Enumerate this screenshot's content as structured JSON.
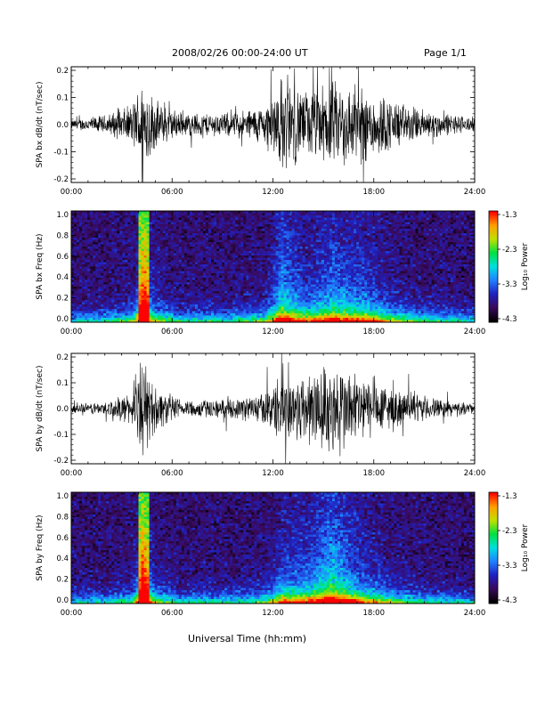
{
  "header": {
    "title": "2008/02/26  00:00-24:00 UT",
    "page": "Page 1/1"
  },
  "footer": {
    "xlabel": "Universal Time (hh:mm)"
  },
  "colorbar": {
    "label": "Log₁₀ Power",
    "ticks": [
      "-1.3",
      "-2.3",
      "-3.3",
      "-4.3"
    ]
  },
  "colors": {
    "background": "#ffffff",
    "waveform": "#000000",
    "spectrogram_scale": [
      "#000000",
      "#3a0a5a",
      "#2020c0",
      "#2080ff",
      "#00e0e0",
      "#00e040",
      "#c0e000",
      "#ffa000",
      "#ff0000"
    ]
  },
  "chart_data": [
    {
      "type": "line",
      "ylabel": "SPA bx dB/dt (nT/sec)",
      "xlim": [
        0,
        24
      ],
      "x_tick_labels": [
        "00:00",
        "06:00",
        "12:00",
        "18:00",
        "24:00"
      ],
      "ylim": [
        -0.2,
        0.2
      ],
      "y_tick_labels": [
        "0.2",
        "0.1",
        "0.0",
        "-0.1",
        "-0.2"
      ],
      "envelope": [
        {
          "x": 0,
          "amp": 0.02
        },
        {
          "x": 2,
          "amp": 0.04
        },
        {
          "x": 3.6,
          "amp": 0.08
        },
        {
          "x": 4.3,
          "amp": 0.21
        },
        {
          "x": 5.0,
          "amp": 0.1
        },
        {
          "x": 6.5,
          "amp": 0.05
        },
        {
          "x": 9.5,
          "amp": 0.05
        },
        {
          "x": 11.5,
          "amp": 0.08
        },
        {
          "x": 12.5,
          "amp": 0.2
        },
        {
          "x": 14,
          "amp": 0.14
        },
        {
          "x": 15.5,
          "amp": 0.18
        },
        {
          "x": 17.5,
          "amp": 0.16
        },
        {
          "x": 20,
          "amp": 0.08
        },
        {
          "x": 22,
          "amp": 0.05
        },
        {
          "x": 24,
          "amp": 0.03
        }
      ]
    },
    {
      "type": "heatmap",
      "ylabel": "SPA bx Freq (Hz)",
      "xlim": [
        0,
        24
      ],
      "x_tick_labels": [
        "00:00",
        "06:00",
        "12:00",
        "18:00",
        "24:00"
      ],
      "ylim": [
        0,
        1.0
      ],
      "y_tick_labels": [
        "1.0",
        "0.8",
        "0.6",
        "0.4",
        "0.2",
        "0.0"
      ],
      "zlim": [
        -4.3,
        -1.3
      ],
      "zlabel": "Log₁₀ Power"
    },
    {
      "type": "line",
      "ylabel": "SPA by dB/dt (nT/sec)",
      "xlim": [
        0,
        24
      ],
      "x_tick_labels": [
        "00:00",
        "06:00",
        "12:00",
        "18:00",
        "24:00"
      ],
      "ylim": [
        -0.2,
        0.2
      ],
      "y_tick_labels": [
        "0.2",
        "0.1",
        "0.0",
        "-0.1",
        "-0.2"
      ],
      "envelope": [
        {
          "x": 0,
          "amp": 0.02
        },
        {
          "x": 2,
          "amp": 0.03
        },
        {
          "x": 3.6,
          "amp": 0.07
        },
        {
          "x": 4.3,
          "amp": 0.21
        },
        {
          "x": 5.0,
          "amp": 0.1
        },
        {
          "x": 6.5,
          "amp": 0.04
        },
        {
          "x": 9.5,
          "amp": 0.04
        },
        {
          "x": 11.5,
          "amp": 0.07
        },
        {
          "x": 12.5,
          "amp": 0.15
        },
        {
          "x": 14,
          "amp": 0.16
        },
        {
          "x": 15.5,
          "amp": 0.21
        },
        {
          "x": 17.5,
          "amp": 0.14
        },
        {
          "x": 20,
          "amp": 0.07
        },
        {
          "x": 22,
          "amp": 0.04
        },
        {
          "x": 24,
          "amp": 0.02
        }
      ]
    },
    {
      "type": "heatmap",
      "ylabel": "SPA by Freq (Hz)",
      "xlim": [
        0,
        24
      ],
      "x_tick_labels": [
        "00:00",
        "06:00",
        "12:00",
        "18:00",
        "24:00"
      ],
      "ylim": [
        0,
        1.0
      ],
      "y_tick_labels": [
        "1.0",
        "0.8",
        "0.6",
        "0.4",
        "0.2",
        "0.0"
      ],
      "zlim": [
        -4.3,
        -1.3
      ],
      "zlabel": "Log₁₀ Power"
    }
  ]
}
